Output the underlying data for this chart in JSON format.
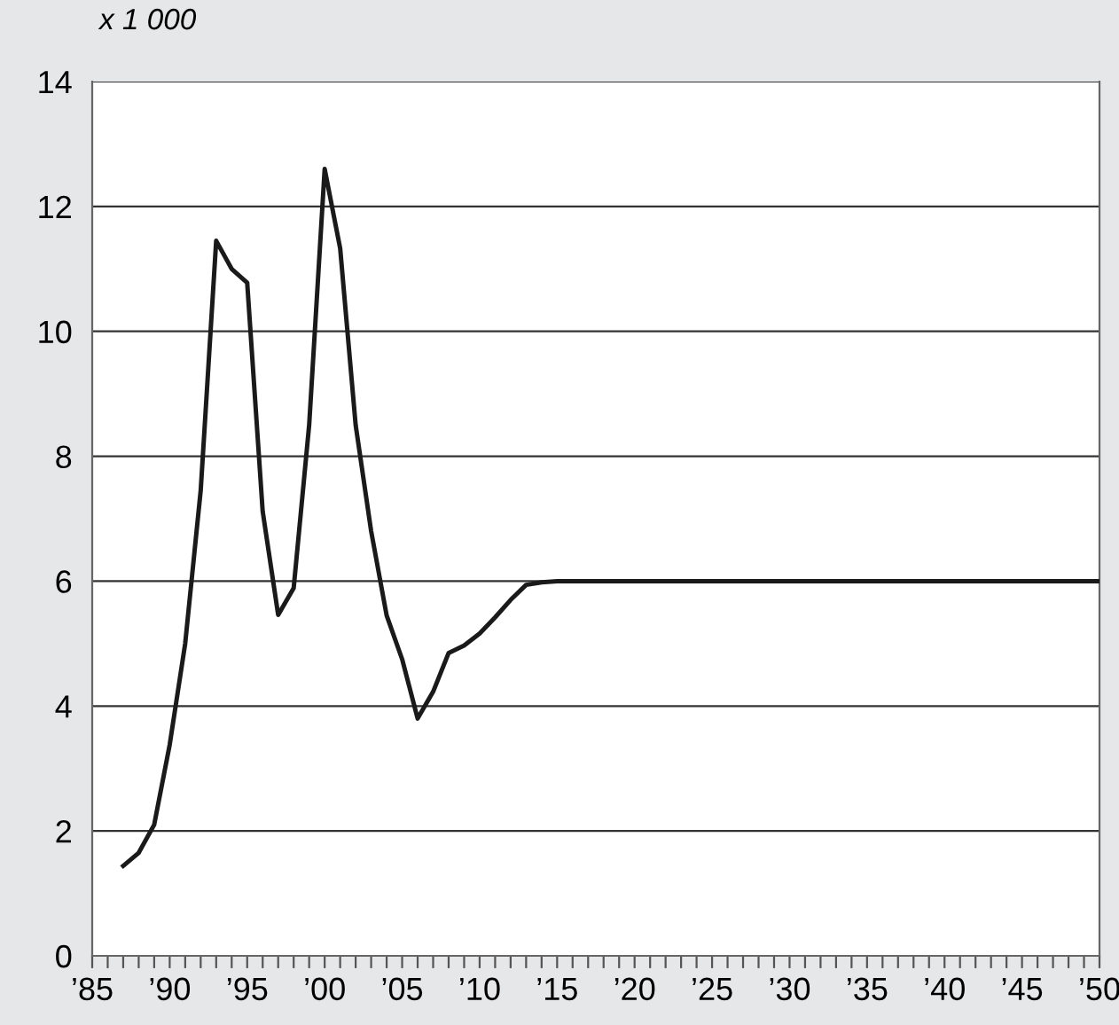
{
  "chart_data": {
    "type": "line",
    "annotations": [
      "x 1 000"
    ],
    "x": [
      1987,
      1988,
      1989,
      1990,
      1991,
      1992,
      1993,
      1994,
      1995,
      1996,
      1997,
      1998,
      1999,
      2000,
      2001,
      2002,
      2003,
      2004,
      2005,
      2006,
      2007,
      2008,
      2009,
      2010,
      2011,
      2012,
      2013,
      2014,
      2015,
      2050
    ],
    "series": [
      {
        "color": "#1a1a1a",
        "values": [
          1.44,
          1.65,
          2.1,
          3.38,
          5.0,
          7.45,
          11.45,
          11.0,
          10.78,
          7.12,
          5.46,
          5.89,
          8.5,
          12.6,
          11.33,
          8.5,
          6.8,
          5.45,
          4.75,
          3.8,
          4.23,
          4.85,
          4.97,
          5.16,
          5.42,
          5.7,
          5.94,
          5.98,
          6.0,
          6.0
        ]
      }
    ],
    "xlim": [
      1985,
      2050
    ],
    "ylim": [
      0,
      14
    ],
    "yticks": [
      0,
      2,
      4,
      6,
      8,
      10,
      12,
      14
    ],
    "xticks": [
      {
        "value": 1985,
        "label": "’85"
      },
      {
        "value": 1990,
        "label": "’90"
      },
      {
        "value": 1995,
        "label": "’95"
      },
      {
        "value": 2000,
        "label": "’00"
      },
      {
        "value": 2005,
        "label": "’05"
      },
      {
        "value": 2010,
        "label": "’10"
      },
      {
        "value": 2015,
        "label": "’15"
      },
      {
        "value": 2020,
        "label": "’20"
      },
      {
        "value": 2025,
        "label": "’25"
      },
      {
        "value": 2030,
        "label": "’30"
      },
      {
        "value": 2035,
        "label": "’35"
      },
      {
        "value": 2040,
        "label": "’40"
      },
      {
        "value": 2045,
        "label": "’45"
      },
      {
        "value": 2050,
        "label": "’50"
      },
      {
        "value": 1986,
        "label": null
      },
      {
        "value": 1987,
        "label": null
      },
      {
        "value": 1988,
        "label": null
      },
      {
        "value": 1989,
        "label": null
      },
      {
        "value": 1991,
        "label": null
      },
      {
        "value": 1992,
        "label": null
      },
      {
        "value": 1993,
        "label": null
      },
      {
        "value": 1994,
        "label": null
      },
      {
        "value": 1996,
        "label": null
      },
      {
        "value": 1997,
        "label": null
      },
      {
        "value": 1998,
        "label": null
      },
      {
        "value": 1999,
        "label": null
      },
      {
        "value": 2001,
        "label": null
      },
      {
        "value": 2002,
        "label": null
      },
      {
        "value": 2003,
        "label": null
      },
      {
        "value": 2004,
        "label": null
      },
      {
        "value": 2006,
        "label": null
      },
      {
        "value": 2007,
        "label": null
      },
      {
        "value": 2008,
        "label": null
      },
      {
        "value": 2009,
        "label": null
      },
      {
        "value": 2011,
        "label": null
      },
      {
        "value": 2012,
        "label": null
      },
      {
        "value": 2013,
        "label": null
      },
      {
        "value": 2014,
        "label": null
      },
      {
        "value": 2016,
        "label": null
      },
      {
        "value": 2017,
        "label": null
      },
      {
        "value": 2018,
        "label": null
      },
      {
        "value": 2019,
        "label": null
      },
      {
        "value": 2021,
        "label": null
      },
      {
        "value": 2022,
        "label": null
      },
      {
        "value": 2023,
        "label": null
      },
      {
        "value": 2024,
        "label": null
      },
      {
        "value": 2026,
        "label": null
      },
      {
        "value": 2027,
        "label": null
      },
      {
        "value": 2028,
        "label": null
      },
      {
        "value": 2029,
        "label": null
      },
      {
        "value": 2031,
        "label": null
      },
      {
        "value": 2032,
        "label": null
      },
      {
        "value": 2033,
        "label": null
      },
      {
        "value": 2034,
        "label": null
      },
      {
        "value": 2036,
        "label": null
      },
      {
        "value": 2037,
        "label": null
      },
      {
        "value": 2038,
        "label": null
      },
      {
        "value": 2039,
        "label": null
      },
      {
        "value": 2041,
        "label": null
      },
      {
        "value": 2042,
        "label": null
      },
      {
        "value": 2043,
        "label": null
      },
      {
        "value": 2044,
        "label": null
      },
      {
        "value": 2046,
        "label": null
      },
      {
        "value": 2047,
        "label": null
      },
      {
        "value": 2048,
        "label": null
      },
      {
        "value": 2049,
        "label": null
      }
    ],
    "grid": "y",
    "legend": false,
    "marker": "none",
    "line_style": "solid"
  }
}
